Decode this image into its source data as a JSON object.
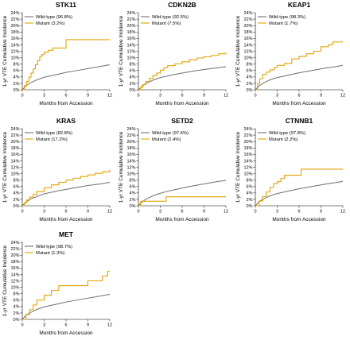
{
  "chart_data": [
    {
      "type": "line",
      "title": "STK11",
      "xlabel": "Months from Accession",
      "ylabel": "1-yr VTE Cumulative Incidence",
      "xlim": [
        0,
        12
      ],
      "ylim": [
        0,
        24
      ],
      "x_ticks": [
        "0",
        "3",
        "6",
        "9",
        "12"
      ],
      "y_ticks": [
        "0%",
        "2%",
        "4%",
        "6%",
        "8%",
        "10%",
        "12%",
        "14%",
        "16%",
        "18%",
        "20%",
        "22%",
        "24%"
      ],
      "legend_position": "top-left",
      "series": [
        {
          "name": "Wild-type (96.8%)",
          "color": "#6e6e6e",
          "step": false,
          "points": [
            [
              0,
              0
            ],
            [
              0.5,
              1.2
            ],
            [
              1,
              2
            ],
            [
              2,
              3.1
            ],
            [
              3,
              3.9
            ],
            [
              4,
              4.4
            ],
            [
              5,
              4.9
            ],
            [
              6,
              5.4
            ],
            [
              7,
              5.8
            ],
            [
              8,
              6.2
            ],
            [
              9,
              6.6
            ],
            [
              10,
              7.0
            ],
            [
              11,
              7.4
            ],
            [
              12,
              7.8
            ]
          ]
        },
        {
          "name": "Mutant (3.2%)",
          "color": "#e2a200",
          "step": true,
          "points": [
            [
              0,
              0
            ],
            [
              0.3,
              1.3
            ],
            [
              0.6,
              2.6
            ],
            [
              0.9,
              3.9
            ],
            [
              1.2,
              5.2
            ],
            [
              1.5,
              6.5
            ],
            [
              1.8,
              7.8
            ],
            [
              2.1,
              9.1
            ],
            [
              2.4,
              10.4
            ],
            [
              2.7,
              11.0
            ],
            [
              3,
              11.7
            ],
            [
              3.6,
              12.3
            ],
            [
              4.2,
              13.0
            ],
            [
              5.2,
              13.0
            ],
            [
              6,
              15.6
            ],
            [
              12,
              15.6
            ]
          ]
        }
      ]
    },
    {
      "type": "line",
      "title": "CDKN2B",
      "xlabel": "Months from Accession",
      "ylabel": "1-yr VTE Cumulative Incidence",
      "xlim": [
        0,
        12
      ],
      "ylim": [
        0,
        24
      ],
      "x_ticks": [
        "0",
        "3",
        "6",
        "9",
        "12"
      ],
      "y_ticks": [
        "0%",
        "2%",
        "4%",
        "6%",
        "8%",
        "10%",
        "12%",
        "14%",
        "16%",
        "18%",
        "20%",
        "22%",
        "24%"
      ],
      "legend_position": "top-left",
      "series": [
        {
          "name": "Wild-type (92.5%)",
          "color": "#6e6e6e",
          "step": false,
          "points": [
            [
              0,
              0
            ],
            [
              0.5,
              1.1
            ],
            [
              1,
              1.9
            ],
            [
              2,
              3.0
            ],
            [
              3,
              3.8
            ],
            [
              4,
              4.3
            ],
            [
              5,
              4.8
            ],
            [
              6,
              5.2
            ],
            [
              7,
              5.6
            ],
            [
              8,
              6.0
            ],
            [
              9,
              6.3
            ],
            [
              10,
              6.6
            ],
            [
              11,
              6.9
            ],
            [
              12,
              7.2
            ]
          ]
        },
        {
          "name": "Mutant (7.5%)",
          "color": "#e2a200",
          "step": true,
          "points": [
            [
              0,
              0
            ],
            [
              0.3,
              0.8
            ],
            [
              0.6,
              1.6
            ],
            [
              1,
              2.6
            ],
            [
              1.5,
              3.6
            ],
            [
              2,
              4.4
            ],
            [
              2.5,
              5.2
            ],
            [
              3,
              6.1
            ],
            [
              3.5,
              6.9
            ],
            [
              4,
              7.5
            ],
            [
              5,
              8.1
            ],
            [
              6,
              8.7
            ],
            [
              7,
              9.3
            ],
            [
              8,
              9.9
            ],
            [
              9,
              10.3
            ],
            [
              10,
              10.7
            ],
            [
              11,
              11.2
            ],
            [
              12,
              11.6
            ]
          ]
        }
      ]
    },
    {
      "type": "line",
      "title": "KEAP1",
      "xlabel": "Months from Accession",
      "ylabel": "1-yr VTE Cumulative Incidence",
      "xlim": [
        0,
        12
      ],
      "ylim": [
        0,
        24
      ],
      "x_ticks": [
        "0",
        "3",
        "6",
        "9",
        "12"
      ],
      "y_ticks": [
        "0%",
        "2%",
        "4%",
        "6%",
        "8%",
        "10%",
        "12%",
        "14%",
        "16%",
        "18%",
        "20%",
        "22%",
        "24%"
      ],
      "legend_position": "top-left",
      "series": [
        {
          "name": "Wild-type (98.3%)",
          "color": "#6e6e6e",
          "step": false,
          "points": [
            [
              0,
              0
            ],
            [
              0.5,
              1.2
            ],
            [
              1,
              2
            ],
            [
              2,
              3.1
            ],
            [
              3,
              3.8
            ],
            [
              4,
              4.3
            ],
            [
              5,
              4.8
            ],
            [
              6,
              5.3
            ],
            [
              7,
              5.7
            ],
            [
              8,
              6.1
            ],
            [
              9,
              6.5
            ],
            [
              10,
              6.9
            ],
            [
              11,
              7.2
            ],
            [
              12,
              7.6
            ]
          ]
        },
        {
          "name": "Mutant (1.7%)",
          "color": "#e2a200",
          "step": true,
          "points": [
            [
              0,
              0
            ],
            [
              0.3,
              2
            ],
            [
              0.6,
              3.4
            ],
            [
              1,
              4.8
            ],
            [
              1.5,
              5.5
            ],
            [
              2,
              6.2
            ],
            [
              2.6,
              7.0
            ],
            [
              3,
              7.6
            ],
            [
              4,
              8.2
            ],
            [
              5,
              9.6
            ],
            [
              6,
              10.4
            ],
            [
              7,
              11.2
            ],
            [
              8,
              12.0
            ],
            [
              9,
              13.4
            ],
            [
              10,
              14.0
            ],
            [
              10.6,
              14.9
            ],
            [
              12,
              14.9
            ]
          ]
        }
      ]
    },
    {
      "type": "line",
      "title": "KRAS",
      "xlabel": "Months from Accession",
      "ylabel": "1-yr VTE Cumulative Incidence",
      "xlim": [
        0,
        12
      ],
      "ylim": [
        0,
        24
      ],
      "x_ticks": [
        "0",
        "3",
        "6",
        "9",
        "12"
      ],
      "y_ticks": [
        "0%",
        "2%",
        "4%",
        "6%",
        "8%",
        "10%",
        "12%",
        "14%",
        "16%",
        "18%",
        "20%",
        "22%",
        "24%"
      ],
      "legend_position": "top-left",
      "series": [
        {
          "name": "Wild-type (82.8%)",
          "color": "#6e6e6e",
          "step": false,
          "points": [
            [
              0,
              0
            ],
            [
              0.5,
              1.1
            ],
            [
              1,
              1.9
            ],
            [
              2,
              2.9
            ],
            [
              3,
              3.7
            ],
            [
              4,
              4.2
            ],
            [
              5,
              4.7
            ],
            [
              6,
              5.1
            ],
            [
              7,
              5.5
            ],
            [
              8,
              5.9
            ],
            [
              9,
              6.3
            ],
            [
              10,
              6.6
            ],
            [
              11,
              6.9
            ],
            [
              12,
              7.3
            ]
          ]
        },
        {
          "name": "Mutant (17.2%)",
          "color": "#e2a200",
          "step": true,
          "points": [
            [
              0,
              0
            ],
            [
              0.3,
              1.0
            ],
            [
              0.6,
              1.8
            ],
            [
              1,
              2.7
            ],
            [
              1.5,
              3.6
            ],
            [
              2,
              4.4
            ],
            [
              3,
              5.6
            ],
            [
              4,
              6.5
            ],
            [
              5,
              7.3
            ],
            [
              6,
              8.0
            ],
            [
              7,
              8.6
            ],
            [
              8,
              9.1
            ],
            [
              9,
              9.6
            ],
            [
              10,
              10.1
            ],
            [
              11,
              10.6
            ],
            [
              12,
              11.2
            ]
          ]
        }
      ]
    },
    {
      "type": "line",
      "title": "SETD2",
      "xlabel": "Months from Accession",
      "ylabel": "1-yr VTE Cumulative Incidence",
      "xlim": [
        0,
        12
      ],
      "ylim": [
        0,
        24
      ],
      "x_ticks": [
        "0",
        "3",
        "6",
        "9",
        "12"
      ],
      "y_ticks": [
        "0%",
        "2%",
        "4%",
        "6%",
        "8%",
        "10%",
        "12%",
        "14%",
        "16%",
        "18%",
        "20%",
        "22%",
        "24%"
      ],
      "legend_position": "top-left",
      "series": [
        {
          "name": "Wild-type (97.6%)",
          "color": "#6e6e6e",
          "step": false,
          "points": [
            [
              0,
              0
            ],
            [
              0.5,
              1.2
            ],
            [
              1,
              2
            ],
            [
              2,
              3.1
            ],
            [
              3,
              3.9
            ],
            [
              4,
              4.5
            ],
            [
              5,
              5.0
            ],
            [
              6,
              5.5
            ],
            [
              7,
              6.0
            ],
            [
              8,
              6.4
            ],
            [
              9,
              6.8
            ],
            [
              10,
              7.2
            ],
            [
              11,
              7.6
            ],
            [
              12,
              7.9
            ]
          ]
        },
        {
          "name": "Mutant (2.4%)",
          "color": "#e2a200",
          "step": true,
          "points": [
            [
              0,
              0
            ],
            [
              0.3,
              1.4
            ],
            [
              3.7,
              1.4
            ],
            [
              3.8,
              2.8
            ],
            [
              12,
              2.8
            ]
          ]
        }
      ]
    },
    {
      "type": "line",
      "title": "CTNNB1",
      "xlabel": "Months from Accession",
      "ylabel": "1-yr VTE Cumulative Incidence",
      "xlim": [
        0,
        12
      ],
      "ylim": [
        0,
        24
      ],
      "x_ticks": [
        "0",
        "3",
        "6",
        "9",
        "12"
      ],
      "y_ticks": [
        "0%",
        "2%",
        "4%",
        "6%",
        "8%",
        "10%",
        "12%",
        "14%",
        "16%",
        "18%",
        "20%",
        "22%",
        "24%"
      ],
      "legend_position": "top-left",
      "series": [
        {
          "name": "Wild-type (97.8%)",
          "color": "#6e6e6e",
          "step": false,
          "points": [
            [
              0,
              0
            ],
            [
              0.5,
              1.2
            ],
            [
              1,
              2
            ],
            [
              2,
              3.1
            ],
            [
              3,
              3.8
            ],
            [
              4,
              4.3
            ],
            [
              5,
              4.8
            ],
            [
              6,
              5.3
            ],
            [
              7,
              5.7
            ],
            [
              8,
              6.1
            ],
            [
              9,
              6.5
            ],
            [
              10,
              6.9
            ],
            [
              11,
              7.2
            ],
            [
              12,
              7.6
            ]
          ]
        },
        {
          "name": "Mutant (2.2%)",
          "color": "#e2a200",
          "step": true,
          "points": [
            [
              0,
              0
            ],
            [
              0.5,
              1.5
            ],
            [
              1,
              2.9
            ],
            [
              1.5,
              4.3
            ],
            [
              2,
              5.7
            ],
            [
              2.5,
              6.9
            ],
            [
              3,
              7.5
            ],
            [
              3.5,
              8.5
            ],
            [
              4,
              9.5
            ],
            [
              5,
              9.5
            ],
            [
              6.3,
              11.4
            ],
            [
              12,
              11.4
            ]
          ]
        }
      ]
    },
    {
      "type": "line",
      "title": "MET",
      "xlabel": "Months from Accession",
      "ylabel": "1-yr VTE Cumulative Incidence",
      "xlim": [
        0,
        12
      ],
      "ylim": [
        0,
        24
      ],
      "x_ticks": [
        "0",
        "3",
        "6",
        "9",
        "12"
      ],
      "y_ticks": [
        "0%",
        "2%",
        "4%",
        "6%",
        "8%",
        "10%",
        "12%",
        "14%",
        "16%",
        "18%",
        "20%",
        "22%",
        "24%"
      ],
      "legend_position": "top-left",
      "series": [
        {
          "name": "Wild-type (98.7%)",
          "color": "#6e6e6e",
          "step": false,
          "points": [
            [
              0,
              0
            ],
            [
              0.5,
              1.2
            ],
            [
              1,
              2
            ],
            [
              2,
              3.1
            ],
            [
              3,
              3.9
            ],
            [
              4,
              4.4
            ],
            [
              5,
              4.9
            ],
            [
              6,
              5.4
            ],
            [
              7,
              5.8
            ],
            [
              8,
              6.2
            ],
            [
              9,
              6.6
            ],
            [
              10,
              7.0
            ],
            [
              11,
              7.4
            ],
            [
              12,
              7.8
            ]
          ]
        },
        {
          "name": "Mutant (1.3%)",
          "color": "#e2a200",
          "step": true,
          "points": [
            [
              0,
              0
            ],
            [
              0.5,
              1.5
            ],
            [
              1,
              3.0
            ],
            [
              1.5,
              4.5
            ],
            [
              2,
              6.0
            ],
            [
              3,
              7.5
            ],
            [
              4,
              9.0
            ],
            [
              5,
              10.5
            ],
            [
              6,
              10.5
            ],
            [
              9,
              12.0
            ],
            [
              11,
              13.5
            ],
            [
              11.7,
              15.0
            ],
            [
              12,
              15.0
            ]
          ]
        }
      ]
    }
  ]
}
